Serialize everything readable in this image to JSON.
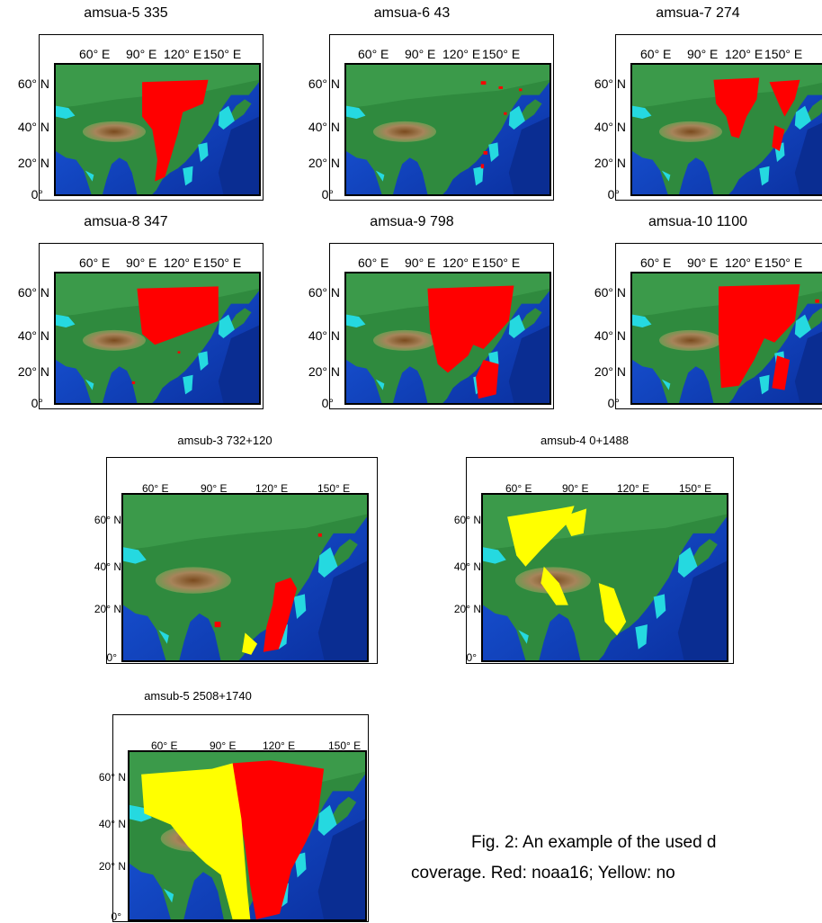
{
  "figure": {
    "caption_line1": "Fig. 2: An example of the used d",
    "caption_line2": "coverage. Red: noaa16; Yellow: no"
  },
  "legend": {
    "noaa16_color": "#ff0000",
    "noaa17_color": "#ffff00"
  },
  "axes": {
    "lon_labels": [
      "60° E",
      "90° E",
      "120° E",
      "150° E"
    ],
    "lat_labels": [
      "60° N",
      "40° N",
      "20° N",
      "0°"
    ]
  },
  "panels": [
    {
      "id": "amsua-5",
      "title": "amsua-5 335",
      "coverage": [
        "noaa16"
      ]
    },
    {
      "id": "amsua-6",
      "title": "amsua-6 43",
      "coverage": [
        "noaa16"
      ]
    },
    {
      "id": "amsua-7",
      "title": "amsua-7 274",
      "coverage": [
        "noaa16"
      ]
    },
    {
      "id": "amsua-8",
      "title": "amsua-8 347",
      "coverage": [
        "noaa16"
      ]
    },
    {
      "id": "amsua-9",
      "title": "amsua-9 798",
      "coverage": [
        "noaa16"
      ]
    },
    {
      "id": "amsua-10",
      "title": "amsua-10 1100",
      "coverage": [
        "noaa16"
      ]
    },
    {
      "id": "amsub-3",
      "title": "amsub-3 732+120",
      "coverage": [
        "noaa16",
        "noaa17"
      ]
    },
    {
      "id": "amsub-4",
      "title": "amsub-4 0+1488",
      "coverage": [
        "noaa17"
      ]
    },
    {
      "id": "amsub-5",
      "title": "amsub-5 2508+1740",
      "coverage": [
        "noaa16",
        "noaa17"
      ]
    }
  ]
}
